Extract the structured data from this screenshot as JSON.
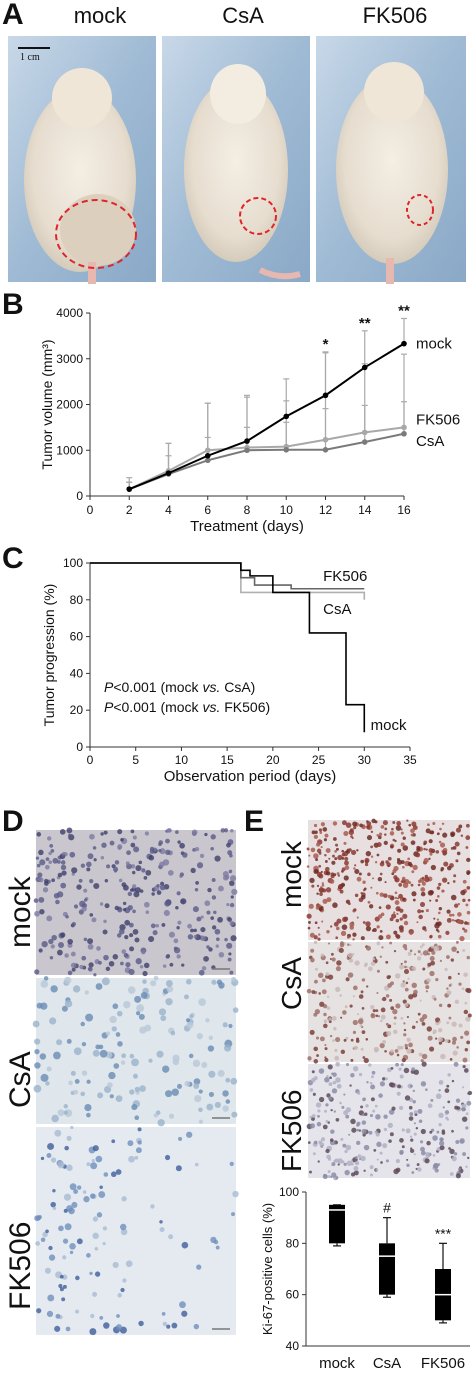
{
  "figure": {
    "panel_a": {
      "letter": "A",
      "labels": [
        "mock",
        "CsA",
        "FK506"
      ],
      "scale_bar": "1 cm"
    },
    "panel_b": {
      "letter": "B"
    },
    "panel_c": {
      "letter": "C"
    },
    "panel_d": {
      "letter": "D",
      "labels": [
        "mock",
        "CsA",
        "FK506"
      ]
    },
    "panel_e": {
      "letter": "E",
      "labels": [
        "mock",
        "CsA",
        "FK506"
      ]
    }
  },
  "chart_data": [
    {
      "id": "B",
      "type": "line",
      "xlabel": "Treatment (days)",
      "ylabel": "Tumor volume (mm³)",
      "x": [
        2,
        4,
        6,
        8,
        10,
        12,
        14,
        16
      ],
      "xlim": [
        0,
        16
      ],
      "ylim": [
        0,
        4000
      ],
      "xticks": [
        "0",
        "2",
        "4",
        "6",
        "8",
        "10",
        "12",
        "14",
        "16"
      ],
      "yticks": [
        "0",
        "1000",
        "2000",
        "3000",
        "4000"
      ],
      "series": [
        {
          "name": "mock",
          "color": "#000000",
          "values": [
            150,
            500,
            880,
            1200,
            1740,
            2200,
            2810,
            3330
          ],
          "errors": [
            250,
            650,
            1150,
            1000,
            820,
            950,
            800,
            550
          ]
        },
        {
          "name": "FK506",
          "color": "#a8a8a8",
          "values": [
            150,
            550,
            1000,
            1060,
            1080,
            1230,
            1390,
            1500
          ],
          "errors": [
            150,
            600,
            1030,
            1100,
            1000,
            1900,
            1500,
            1600
          ]
        },
        {
          "name": "CsA",
          "color": "#7a7a7a",
          "values": [
            150,
            480,
            780,
            1000,
            1010,
            1010,
            1180,
            1360
          ],
          "errors": [
            150,
            400,
            500,
            500,
            600,
            900,
            800,
            700
          ]
        }
      ],
      "annotations": [
        {
          "x": 12,
          "text": "*"
        },
        {
          "x": 14,
          "text": "**"
        },
        {
          "x": 16,
          "text": "**"
        }
      ]
    },
    {
      "id": "C",
      "type": "line",
      "xlabel": "Observation period (days)",
      "ylabel": "Tumor progression (%)",
      "xlim": [
        0,
        35
      ],
      "ylim": [
        0,
        100
      ],
      "xticks": [
        "0",
        "5",
        "10",
        "15",
        "20",
        "25",
        "30",
        "35"
      ],
      "yticks": [
        "0",
        "20",
        "40",
        "60",
        "80",
        "100"
      ],
      "series": [
        {
          "name": "FK506",
          "color": "#666666",
          "x": [
            0,
            16.5,
            16.5,
            18,
            18,
            22,
            22,
            30
          ],
          "values": [
            100,
            100,
            92,
            92,
            88,
            88,
            86,
            86
          ]
        },
        {
          "name": "CsA",
          "color": "#b0b0b0",
          "x": [
            0,
            16.5,
            16.5,
            30,
            30
          ],
          "values": [
            100,
            100,
            84,
            84,
            80
          ]
        },
        {
          "name": "mock",
          "color": "#000000",
          "x": [
            0,
            16.5,
            16.5,
            17.5,
            17.5,
            20,
            20,
            24,
            24,
            28,
            28,
            30,
            30
          ],
          "values": [
            100,
            100,
            96,
            96,
            93,
            93,
            84,
            84,
            62,
            62,
            23,
            23,
            8
          ]
        }
      ],
      "annotations": [
        {
          "text_italic": "P",
          "text": "<0.001 (mock ",
          "text_italic2": "vs.",
          "text2": " CsA)"
        },
        {
          "text_italic": "P",
          "text": "<0.001 (mock ",
          "text_italic2": "vs.",
          "text2": " FK506)"
        }
      ]
    },
    {
      "id": "E-chart",
      "type": "box",
      "ylabel": "Ki-67-positive cells (%)",
      "ylim": [
        40,
        100
      ],
      "yticks": [
        "40",
        "60",
        "80",
        "100"
      ],
      "categories": [
        "mock",
        "CsA",
        "FK506"
      ],
      "boxes": [
        {
          "min": 79,
          "q1": 80,
          "median": 93,
          "q3": 95,
          "max": 95
        },
        {
          "min": 59,
          "q1": 60,
          "median": 75,
          "q3": 80,
          "max": 90
        },
        {
          "min": 49,
          "q1": 50,
          "median": 60,
          "q3": 70,
          "max": 80
        }
      ],
      "annotations": [
        "",
        "#",
        "***"
      ]
    }
  ]
}
